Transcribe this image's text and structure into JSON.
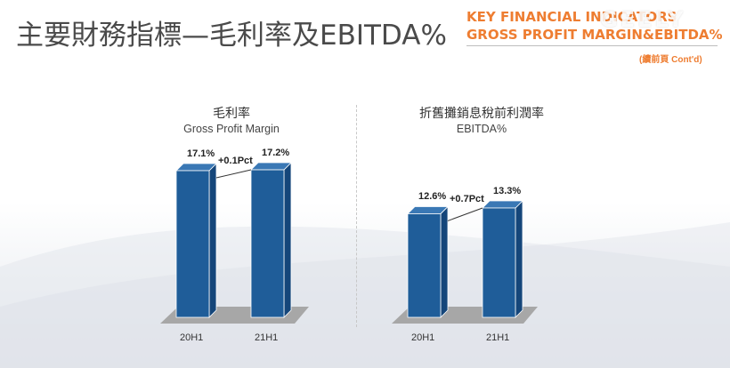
{
  "header": {
    "title": "主要財務指標—毛利率及EBITDA%",
    "en_title_line1": "KEY FINANCIAL INDICATORS",
    "en_title_line2": "GROSS PROFIT MARGIN&EBITDA%",
    "brand": "GEELY",
    "continued": "(續前頁 Cont'd)",
    "accent_color": "#ee7d31"
  },
  "colors": {
    "bar_front": "#1f5d99",
    "bar_side": "#15467a",
    "bar_top": "#3a78b5",
    "floor": "#a7a7a7"
  },
  "chart_data": [
    {
      "type": "bar",
      "title": "毛利率",
      "subtitle": "Gross Profit Margin",
      "categories": [
        "20H1",
        "21H1"
      ],
      "values": [
        17.1,
        17.2
      ],
      "value_labels": [
        "17.1%",
        "17.2%"
      ],
      "change_label": "+0.1Pct",
      "unit": "%",
      "ylim": [
        0,
        20
      ]
    },
    {
      "type": "bar",
      "title": "折舊攤銷息稅前利潤率",
      "subtitle": "EBITDA%",
      "categories": [
        "20H1",
        "21H1"
      ],
      "values": [
        12.6,
        13.3
      ],
      "value_labels": [
        "12.6%",
        "13.3%"
      ],
      "change_label": "+0.7Pct",
      "unit": "%",
      "ylim": [
        0,
        20
      ]
    }
  ]
}
